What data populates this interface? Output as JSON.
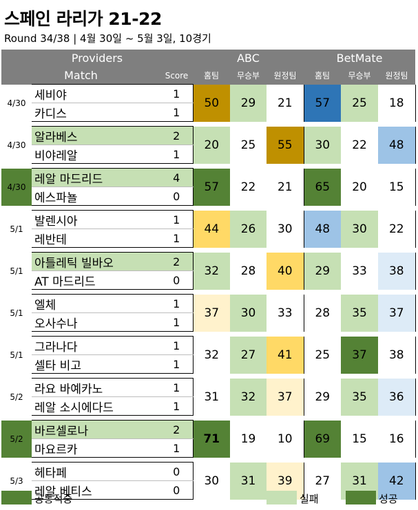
{
  "title": "스페인 라리가 21-22",
  "subtitle": "Round 34/38 | 4월 30일 ~ 5월 3일, 10경기",
  "header": {
    "providers": "Providers",
    "abc": "ABC",
    "betmate": "BetMate",
    "match": "Match",
    "score": "Score",
    "abc_cols": [
      "홈팀",
      "무승부",
      "원정팀"
    ],
    "betmate_cols": [
      "홈팀",
      "무승부",
      "원정팀"
    ]
  },
  "colors": {
    "header_bg": "#7f7f7f",
    "light_green": "#c6e0b4",
    "dark_green": "#548235",
    "dark_gold": "#bf9000",
    "gold": "#ffd966",
    "light_yellow": "#fff2cc",
    "dark_blue": "#2e75b6",
    "light_blue": "#9dc3e6",
    "pale_blue": "#ddebf7"
  },
  "matches": [
    {
      "date": "4/30",
      "home": "세비야",
      "away": "카디스",
      "home_score": "1",
      "away_score": "1",
      "abc": [
        "50",
        "29",
        "21"
      ],
      "betmate": [
        "57",
        "25",
        "18"
      ]
    },
    {
      "date": "4/30",
      "home": "알라베스",
      "away": "비야레알",
      "home_score": "2",
      "away_score": "1",
      "abc": [
        "20",
        "25",
        "55"
      ],
      "betmate": [
        "30",
        "22",
        "48"
      ]
    },
    {
      "date": "4/30",
      "home": "레알 마드리드",
      "away": "에스파뇰",
      "home_score": "4",
      "away_score": "0",
      "abc": [
        "57",
        "22",
        "21"
      ],
      "betmate": [
        "65",
        "20",
        "15"
      ]
    },
    {
      "date": "5/1",
      "home": "발렌시아",
      "away": "레반테",
      "home_score": "1",
      "away_score": "1",
      "abc": [
        "44",
        "26",
        "30"
      ],
      "betmate": [
        "48",
        "30",
        "22"
      ]
    },
    {
      "date": "5/1",
      "home": "아틀레틱 빌바오",
      "away": "AT 마드리드",
      "home_score": "2",
      "away_score": "0",
      "abc": [
        "32",
        "28",
        "40"
      ],
      "betmate": [
        "29",
        "33",
        "38"
      ]
    },
    {
      "date": "5/1",
      "home": "엘체",
      "away": "오사수나",
      "home_score": "1",
      "away_score": "1",
      "abc": [
        "37",
        "30",
        "33"
      ],
      "betmate": [
        "28",
        "35",
        "37"
      ]
    },
    {
      "date": "5/1",
      "home": "그라나다",
      "away": "셀타 비고",
      "home_score": "1",
      "away_score": "1",
      "abc": [
        "32",
        "27",
        "41"
      ],
      "betmate": [
        "25",
        "37",
        "38"
      ]
    },
    {
      "date": "5/2",
      "home": "라요 바예카노",
      "away": "레알 소시에다드",
      "home_score": "1",
      "away_score": "1",
      "abc": [
        "31",
        "32",
        "37"
      ],
      "betmate": [
        "29",
        "35",
        "36"
      ]
    },
    {
      "date": "5/2",
      "home": "바르셀로나",
      "away": "마요르카",
      "home_score": "2",
      "away_score": "1",
      "abc": [
        "71",
        "19",
        "10"
      ],
      "betmate": [
        "69",
        "15",
        "16"
      ]
    },
    {
      "date": "5/3",
      "home": "헤타페",
      "away": "레알 베티스",
      "home_score": "0",
      "away_score": "0",
      "abc": [
        "30",
        "31",
        "39"
      ],
      "betmate": [
        "27",
        "31",
        "42"
      ]
    }
  ],
  "legend": {
    "both_correct": "공통적중",
    "fail": "실패",
    "success": "성공"
  }
}
